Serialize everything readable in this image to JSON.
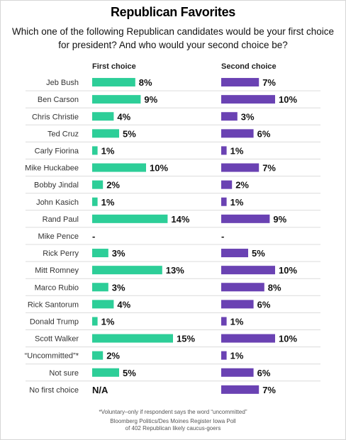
{
  "title": "Republican Favorites",
  "subtitle_line1": "Which one of the following Republican candidates would be your first choice",
  "subtitle_line2": "for president? And who would your second choice be?",
  "colors": {
    "first": "#2dce98",
    "second": "#6a42b3",
    "divider": "#dcdcdc",
    "text": "#111111"
  },
  "chart_data": {
    "type": "bar",
    "orientation": "horizontal",
    "categories": [
      "Jeb Bush",
      "Ben Carson",
      "Chris Christie",
      "Ted Cruz",
      "Carly Fiorina",
      "Mike Huckabee",
      "Bobby Jindal",
      "John Kasich",
      "Rand Paul",
      "Mike Pence",
      "Rick Perry",
      "Mitt Romney",
      "Marco Rubio",
      "Rick Santorum",
      "Donald Trump",
      "Scott Walker",
      "“Uncommitted”*",
      "Not sure",
      "No first choice"
    ],
    "series": [
      {
        "name": "First choice",
        "values": [
          8,
          9,
          4,
          5,
          1,
          10,
          2,
          1,
          14,
          null,
          3,
          13,
          3,
          4,
          1,
          15,
          2,
          5,
          null
        ],
        "labels": [
          "8%",
          "9%",
          "4%",
          "5%",
          "1%",
          "10%",
          "2%",
          "1%",
          "14%",
          "-",
          "3%",
          "13%",
          "3%",
          "4%",
          "1%",
          "15%",
          "2%",
          "5%",
          "N/A"
        ]
      },
      {
        "name": "Second choice",
        "values": [
          7,
          10,
          3,
          6,
          1,
          7,
          2,
          1,
          9,
          null,
          5,
          10,
          8,
          6,
          1,
          10,
          1,
          6,
          7
        ],
        "labels": [
          "7%",
          "10%",
          "3%",
          "6%",
          "1%",
          "7%",
          "2%",
          "1%",
          "9%",
          "-",
          "5%",
          "10%",
          "8%",
          "6%",
          "1%",
          "10%",
          "1%",
          "6%",
          "7%"
        ]
      }
    ],
    "value_unit": "%"
  },
  "footnote": "*Voluntary–only if respondent says the word “uncommitted”",
  "source_line1": "Bloomberg Politics/Des Moines Register Iowa Poll",
  "source_line2": "of 402 Republican likely caucus-goers"
}
